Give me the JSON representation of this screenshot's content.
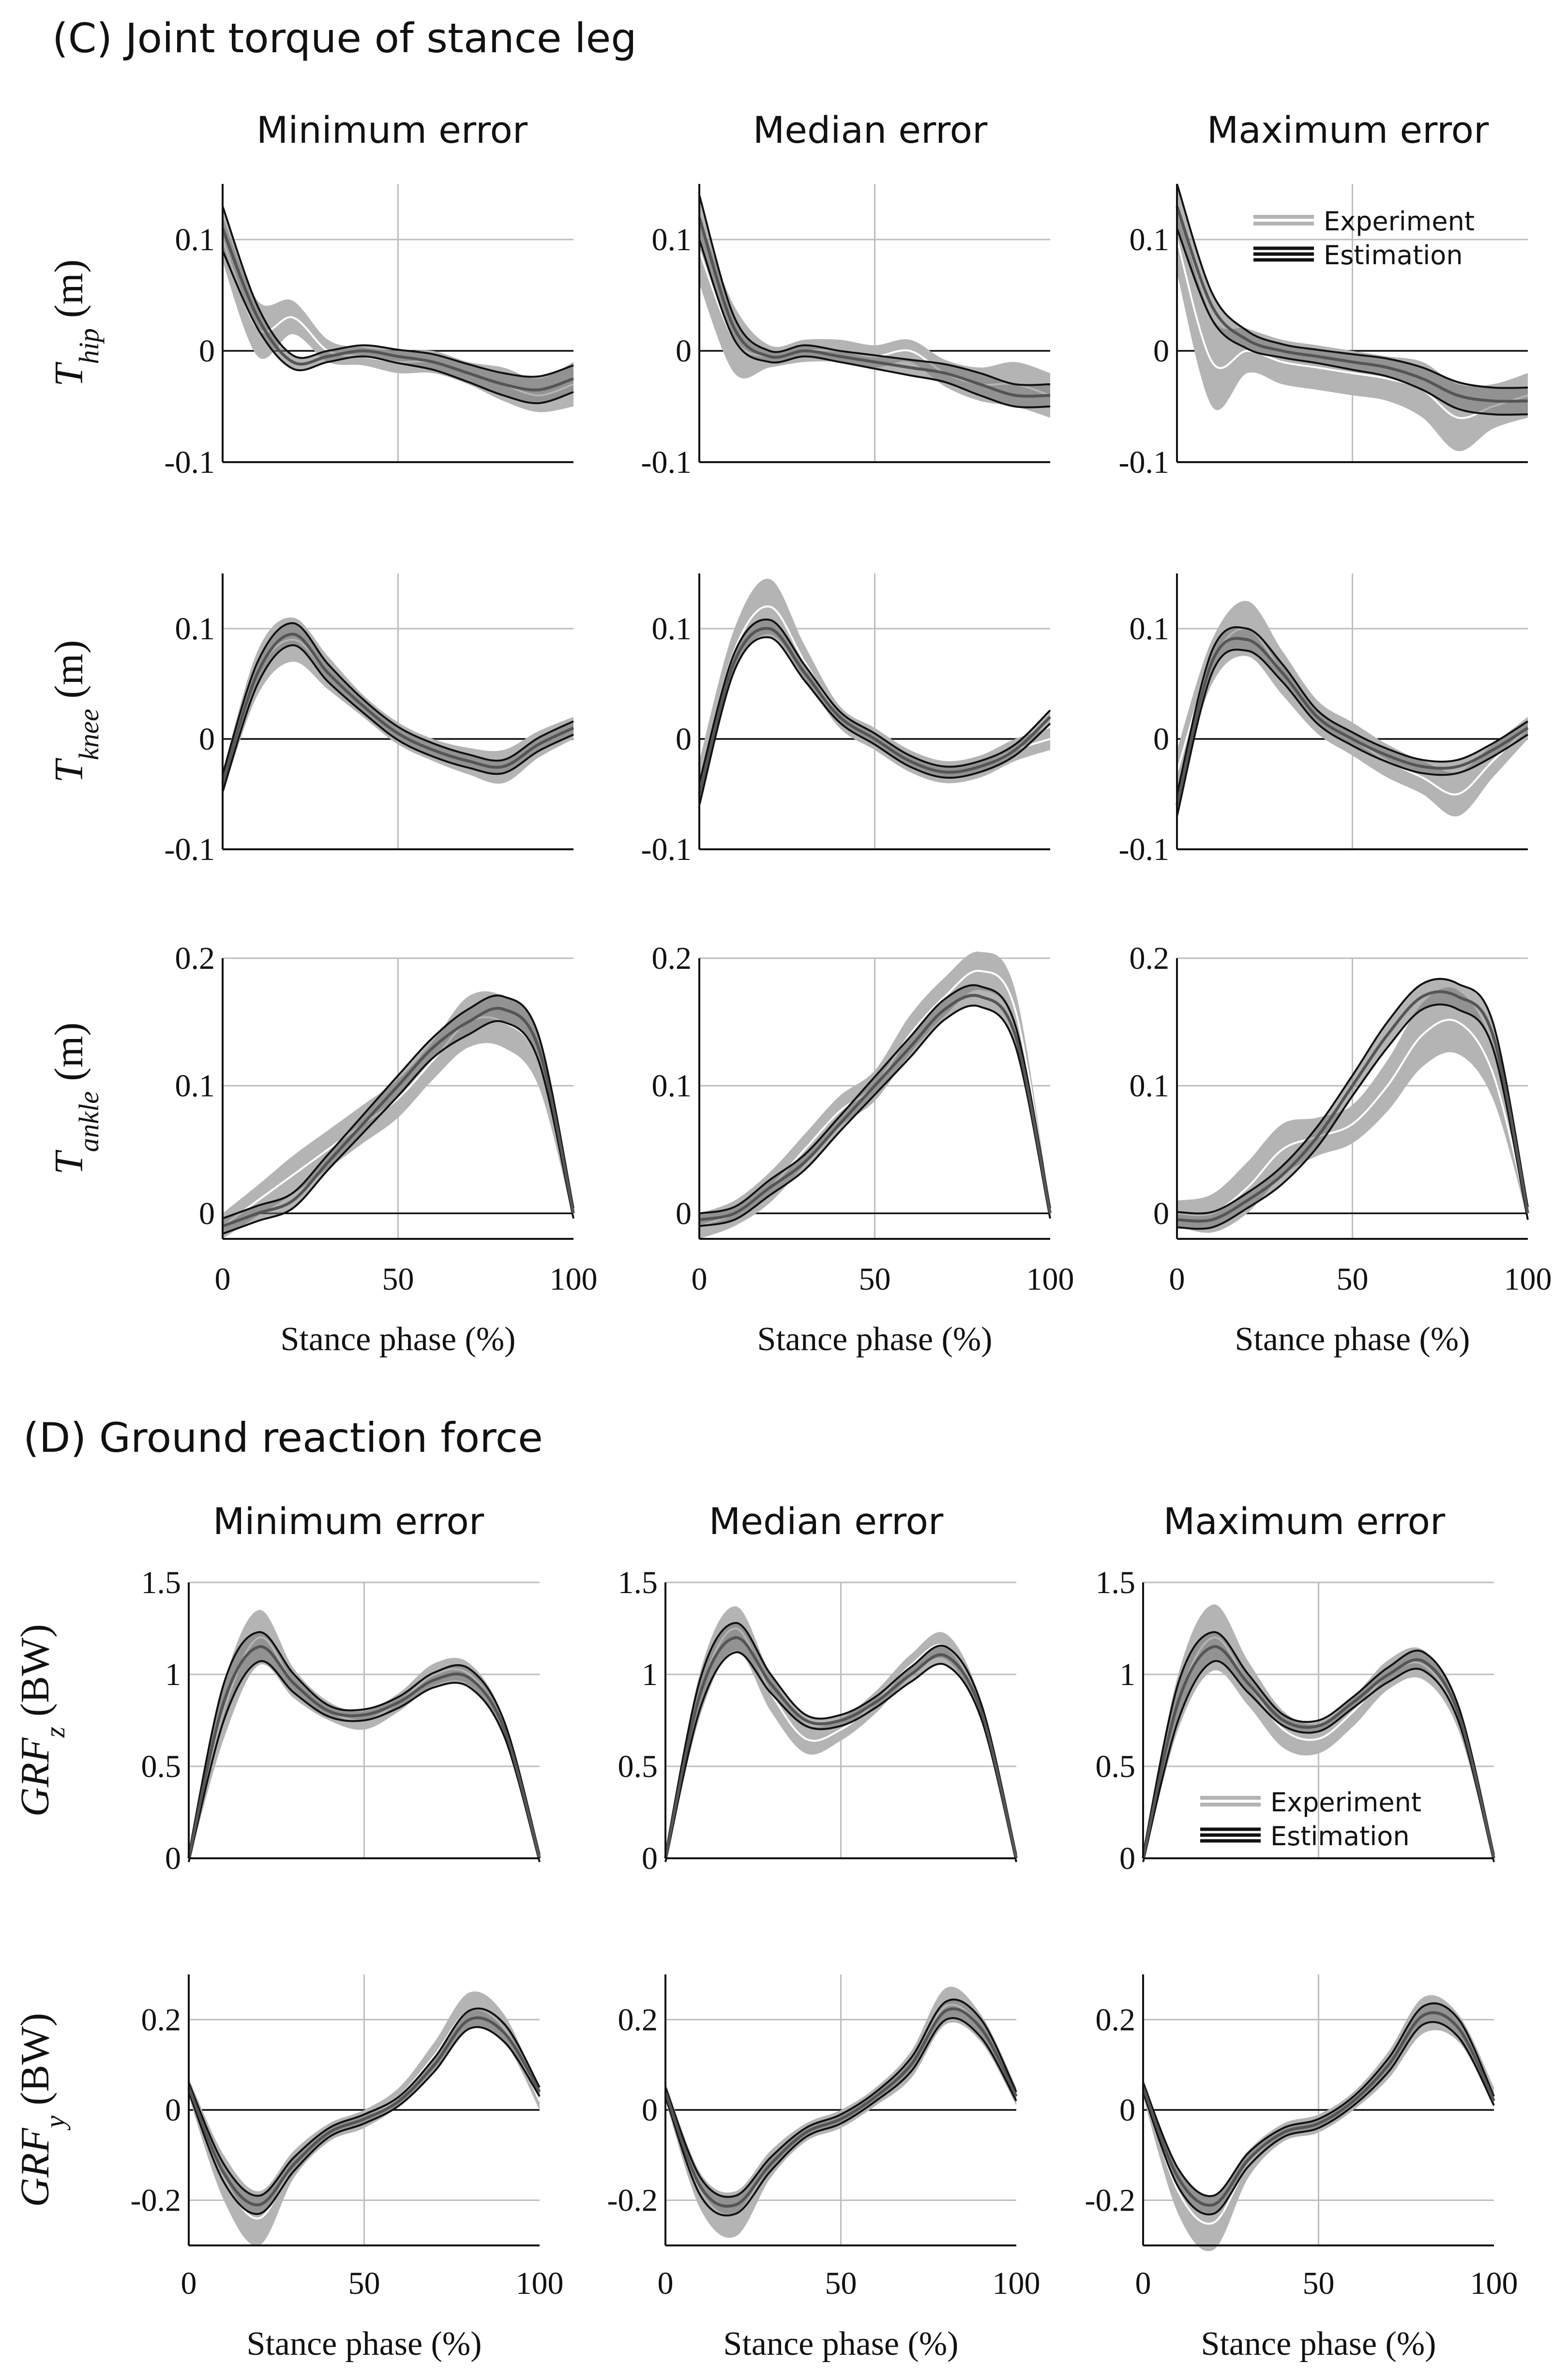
{
  "sections": {
    "C": {
      "title": "(C) Joint torque of stance leg"
    },
    "D": {
      "title": "(D) Ground reaction force"
    }
  },
  "columns": [
    "Minimum error",
    "Median error",
    "Maximum error"
  ],
  "legend": {
    "experiment": "Experiment",
    "estimation": "Estimation"
  },
  "x_axis": {
    "label": "Stance phase (%)",
    "ticks": [
      "0",
      "50",
      "100"
    ]
  },
  "colors": {
    "experiment_band": "#b4b4b4",
    "experiment_mean": "#ffffff",
    "estimation": "#111111",
    "estimation_mean": "#555555",
    "grid": "#bdbdbd",
    "zero_line": "#111111"
  },
  "rows": [
    {
      "id": "hip",
      "y_label": {
        "main": "T",
        "sub": "hip",
        "unit": " (m)"
      },
      "ylim": [
        -0.1,
        0.15
      ],
      "yticks": [
        0.1,
        0,
        -0.1
      ],
      "ytick_labels": [
        "0.1",
        "0",
        "-0.1"
      ]
    },
    {
      "id": "knee",
      "y_label": {
        "main": "T",
        "sub": "knee",
        "unit": " (m)"
      },
      "ylim": [
        -0.1,
        0.15
      ],
      "yticks": [
        0.1,
        0,
        -0.1
      ],
      "ytick_labels": [
        "0.1",
        "0",
        "-0.1"
      ]
    },
    {
      "id": "ankle",
      "y_label": {
        "main": "T",
        "sub": "ankle",
        "unit": " (m)"
      },
      "ylim": [
        -0.02,
        0.2
      ],
      "yticks": [
        0.2,
        0.1,
        0
      ],
      "ytick_labels": [
        "0.2",
        "0.1",
        "0"
      ]
    },
    {
      "id": "grfz",
      "y_label": {
        "main": "GRF",
        "sub": "z",
        "unit": " (BW)"
      },
      "ylim": [
        0,
        1.5
      ],
      "yticks": [
        1.5,
        1,
        0.5,
        0
      ],
      "ytick_labels": [
        "1.5",
        "1",
        "0.5",
        "0"
      ]
    },
    {
      "id": "grfy",
      "y_label": {
        "main": "GRF",
        "sub": "y",
        "unit": " (BW)"
      },
      "ylim": [
        -0.3,
        0.3
      ],
      "yticks": [
        0.2,
        0,
        -0.2
      ],
      "ytick_labels": [
        "0.2",
        "0",
        "-0.2"
      ]
    }
  ],
  "chart_data": {
    "type": "line",
    "x": [
      0,
      10,
      20,
      30,
      40,
      50,
      60,
      70,
      80,
      90,
      100
    ],
    "series_note": "Experiment mean with ±SD band (gray), Estimation mean with ±SD lines (black). Values in data units, estimated from the figure.",
    "panels": [
      {
        "row": "hip",
        "col": "Minimum error",
        "experiment": {
          "mean": [
            0.1,
            0.02,
            0.03,
            0.0,
            -0.005,
            -0.01,
            -0.01,
            -0.02,
            -0.03,
            -0.04,
            -0.03
          ],
          "sd": [
            0.02,
            0.025,
            0.015,
            0.01,
            0.008,
            0.01,
            0.01,
            0.01,
            0.015,
            0.015,
            0.02
          ]
        },
        "estimation": {
          "mean": [
            0.11,
            0.03,
            -0.01,
            -0.005,
            0.0,
            -0.005,
            -0.01,
            -0.02,
            -0.03,
            -0.035,
            -0.025
          ],
          "sd": [
            0.02,
            0.01,
            0.006,
            0.005,
            0.005,
            0.006,
            0.007,
            0.008,
            0.01,
            0.012,
            0.012
          ]
        }
      },
      {
        "row": "hip",
        "col": "Median error",
        "experiment": {
          "mean": [
            0.09,
            0.01,
            -0.005,
            0.0,
            0.0,
            -0.005,
            0.0,
            -0.02,
            -0.03,
            -0.03,
            -0.04
          ],
          "sd": [
            0.03,
            0.03,
            0.01,
            0.01,
            0.01,
            0.01,
            0.01,
            0.012,
            0.015,
            0.02,
            0.02
          ]
        },
        "estimation": {
          "mean": [
            0.12,
            0.02,
            -0.005,
            0.0,
            -0.005,
            -0.01,
            -0.015,
            -0.02,
            -0.03,
            -0.04,
            -0.04
          ],
          "sd": [
            0.02,
            0.01,
            0.005,
            0.005,
            0.005,
            0.006,
            0.007,
            0.008,
            0.01,
            0.01,
            0.01
          ]
        }
      },
      {
        "row": "hip",
        "col": "Maximum error",
        "experiment": {
          "mean": [
            0.1,
            -0.01,
            0.0,
            -0.01,
            -0.015,
            -0.02,
            -0.025,
            -0.035,
            -0.06,
            -0.05,
            -0.04
          ],
          "sd": [
            0.03,
            0.04,
            0.02,
            0.02,
            0.02,
            0.02,
            0.02,
            0.025,
            0.03,
            0.02,
            0.02
          ]
        },
        "estimation": {
          "mean": [
            0.13,
            0.04,
            0.01,
            0.0,
            -0.005,
            -0.01,
            -0.015,
            -0.025,
            -0.04,
            -0.045,
            -0.045
          ],
          "sd": [
            0.02,
            0.012,
            0.008,
            0.006,
            0.006,
            0.007,
            0.008,
            0.01,
            0.012,
            0.012,
            0.012
          ]
        }
      },
      {
        "row": "knee",
        "col": "Minimum error",
        "experiment": {
          "mean": [
            -0.04,
            0.06,
            0.09,
            0.06,
            0.03,
            0.005,
            -0.01,
            -0.02,
            -0.025,
            -0.005,
            0.01
          ],
          "sd": [
            0.01,
            0.02,
            0.02,
            0.015,
            0.01,
            0.01,
            0.01,
            0.012,
            0.015,
            0.012,
            0.01
          ]
        },
        "estimation": {
          "mean": [
            -0.04,
            0.06,
            0.095,
            0.06,
            0.03,
            0.005,
            -0.01,
            -0.02,
            -0.025,
            -0.005,
            0.01
          ],
          "sd": [
            0.008,
            0.01,
            0.01,
            0.008,
            0.006,
            0.006,
            0.006,
            0.006,
            0.006,
            0.006,
            0.006
          ]
        }
      },
      {
        "row": "knee",
        "col": "Median error",
        "experiment": {
          "mean": [
            -0.04,
            0.08,
            0.12,
            0.07,
            0.02,
            0.0,
            -0.02,
            -0.03,
            -0.025,
            -0.01,
            0.0
          ],
          "sd": [
            0.02,
            0.02,
            0.025,
            0.015,
            0.01,
            0.01,
            0.01,
            0.01,
            0.01,
            0.01,
            0.01
          ]
        },
        "estimation": {
          "mean": [
            -0.05,
            0.07,
            0.1,
            0.06,
            0.02,
            0.0,
            -0.02,
            -0.03,
            -0.025,
            -0.01,
            0.02
          ],
          "sd": [
            0.01,
            0.008,
            0.008,
            0.007,
            0.005,
            0.005,
            0.005,
            0.005,
            0.005,
            0.005,
            0.006
          ]
        }
      },
      {
        "row": "knee",
        "col": "Maximum error",
        "experiment": {
          "mean": [
            -0.03,
            0.07,
            0.1,
            0.06,
            0.02,
            0.0,
            -0.02,
            -0.035,
            -0.05,
            -0.02,
            0.01
          ],
          "sd": [
            0.02,
            0.02,
            0.025,
            0.02,
            0.015,
            0.015,
            0.015,
            0.015,
            0.02,
            0.015,
            0.01
          ]
        },
        "estimation": {
          "mean": [
            -0.06,
            0.07,
            0.09,
            0.06,
            0.02,
            0.0,
            -0.015,
            -0.025,
            -0.025,
            -0.01,
            0.01
          ],
          "sd": [
            0.01,
            0.01,
            0.01,
            0.008,
            0.006,
            0.006,
            0.006,
            0.006,
            0.006,
            0.006,
            0.006
          ]
        }
      },
      {
        "row": "ankle",
        "col": "Minimum error",
        "experiment": {
          "mean": [
            -0.01,
            0.01,
            0.03,
            0.05,
            0.07,
            0.09,
            0.12,
            0.15,
            0.15,
            0.12,
            0.0
          ],
          "sd": [
            0.01,
            0.012,
            0.015,
            0.015,
            0.015,
            0.015,
            0.015,
            0.02,
            0.02,
            0.02,
            0.005
          ]
        },
        "estimation": {
          "mean": [
            -0.01,
            0.0,
            0.01,
            0.04,
            0.07,
            0.1,
            0.13,
            0.15,
            0.16,
            0.13,
            0.0
          ],
          "sd": [
            0.006,
            0.006,
            0.006,
            0.006,
            0.007,
            0.008,
            0.008,
            0.01,
            0.01,
            0.01,
            0.004
          ]
        }
      },
      {
        "row": "ankle",
        "col": "Median error",
        "experiment": {
          "mean": [
            -0.01,
            0.0,
            0.02,
            0.05,
            0.08,
            0.1,
            0.14,
            0.17,
            0.19,
            0.16,
            0.0
          ],
          "sd": [
            0.01,
            0.01,
            0.012,
            0.012,
            0.012,
            0.012,
            0.015,
            0.015,
            0.015,
            0.015,
            0.005
          ]
        },
        "estimation": {
          "mean": [
            -0.005,
            0.0,
            0.02,
            0.04,
            0.07,
            0.1,
            0.13,
            0.16,
            0.17,
            0.14,
            0.0
          ],
          "sd": [
            0.005,
            0.005,
            0.006,
            0.006,
            0.006,
            0.007,
            0.008,
            0.008,
            0.008,
            0.008,
            0.004
          ]
        }
      },
      {
        "row": "ankle",
        "col": "Maximum error",
        "experiment": {
          "mean": [
            0.0,
            0.0,
            0.02,
            0.05,
            0.06,
            0.07,
            0.1,
            0.14,
            0.15,
            0.11,
            0.0
          ],
          "sd": [
            0.01,
            0.015,
            0.02,
            0.02,
            0.015,
            0.015,
            0.02,
            0.025,
            0.025,
            0.02,
            0.005
          ]
        },
        "estimation": {
          "mean": [
            -0.005,
            -0.005,
            0.01,
            0.03,
            0.06,
            0.1,
            0.14,
            0.17,
            0.17,
            0.14,
            0.0
          ],
          "sd": [
            0.006,
            0.006,
            0.006,
            0.007,
            0.008,
            0.008,
            0.01,
            0.01,
            0.01,
            0.01,
            0.005
          ]
        }
      },
      {
        "row": "grfz",
        "col": "Minimum error",
        "experiment": {
          "mean": [
            0.0,
            0.8,
            1.2,
            0.95,
            0.8,
            0.75,
            0.85,
            1.0,
            1.0,
            0.7,
            0.0
          ],
          "sd": [
            0.02,
            0.15,
            0.15,
            0.08,
            0.05,
            0.05,
            0.05,
            0.06,
            0.06,
            0.05,
            0.02
          ]
        },
        "estimation": {
          "mean": [
            0.0,
            0.85,
            1.15,
            0.95,
            0.8,
            0.78,
            0.85,
            0.97,
            0.98,
            0.7,
            0.0
          ],
          "sd": [
            0.02,
            0.1,
            0.08,
            0.05,
            0.03,
            0.03,
            0.03,
            0.04,
            0.05,
            0.04,
            0.02
          ]
        }
      },
      {
        "row": "grfz",
        "col": "Median error",
        "experiment": {
          "mean": [
            0.0,
            0.9,
            1.25,
            0.9,
            0.65,
            0.7,
            0.85,
            1.05,
            1.15,
            0.8,
            0.0
          ],
          "sd": [
            0.02,
            0.12,
            0.12,
            0.1,
            0.08,
            0.06,
            0.06,
            0.06,
            0.07,
            0.05,
            0.02
          ]
        },
        "estimation": {
          "mean": [
            0.0,
            0.9,
            1.2,
            0.95,
            0.75,
            0.75,
            0.85,
            1.0,
            1.1,
            0.8,
            0.0
          ],
          "sd": [
            0.02,
            0.08,
            0.08,
            0.05,
            0.03,
            0.03,
            0.03,
            0.04,
            0.05,
            0.04,
            0.02
          ]
        }
      },
      {
        "row": "grfz",
        "col": "Maximum error",
        "experiment": {
          "mean": [
            0.0,
            0.85,
            1.2,
            0.95,
            0.7,
            0.65,
            0.8,
            1.0,
            1.05,
            0.75,
            0.0
          ],
          "sd": [
            0.02,
            0.15,
            0.18,
            0.12,
            0.1,
            0.08,
            0.08,
            0.08,
            0.08,
            0.06,
            0.02
          ]
        },
        "estimation": {
          "mean": [
            0.0,
            0.85,
            1.15,
            0.95,
            0.75,
            0.72,
            0.85,
            1.0,
            1.07,
            0.78,
            0.0
          ],
          "sd": [
            0.02,
            0.1,
            0.08,
            0.05,
            0.03,
            0.03,
            0.03,
            0.04,
            0.05,
            0.04,
            0.02
          ]
        }
      },
      {
        "row": "grfy",
        "col": "Minimum error",
        "experiment": {
          "mean": [
            0.05,
            -0.15,
            -0.24,
            -0.12,
            -0.05,
            -0.02,
            0.03,
            0.12,
            0.22,
            0.18,
            0.02
          ],
          "sd": [
            0.02,
            0.05,
            0.06,
            0.03,
            0.02,
            0.02,
            0.02,
            0.03,
            0.04,
            0.03,
            0.02
          ]
        },
        "estimation": {
          "mean": [
            0.05,
            -0.14,
            -0.21,
            -0.12,
            -0.05,
            -0.02,
            0.02,
            0.1,
            0.2,
            0.17,
            0.04
          ],
          "sd": [
            0.01,
            0.02,
            0.02,
            0.015,
            0.01,
            0.01,
            0.01,
            0.015,
            0.02,
            0.02,
            0.01
          ]
        }
      },
      {
        "row": "grfy",
        "col": "Median error",
        "experiment": {
          "mean": [
            0.04,
            -0.18,
            -0.23,
            -0.12,
            -0.05,
            -0.02,
            0.03,
            0.1,
            0.23,
            0.18,
            0.03
          ],
          "sd": [
            0.02,
            0.04,
            0.05,
            0.03,
            0.02,
            0.02,
            0.02,
            0.03,
            0.04,
            0.03,
            0.02
          ]
        },
        "estimation": {
          "mean": [
            0.04,
            -0.17,
            -0.21,
            -0.12,
            -0.05,
            -0.02,
            0.03,
            0.1,
            0.22,
            0.18,
            0.03
          ],
          "sd": [
            0.01,
            0.02,
            0.02,
            0.015,
            0.01,
            0.01,
            0.01,
            0.015,
            0.02,
            0.02,
            0.01
          ]
        }
      },
      {
        "row": "grfy",
        "col": "Maximum error",
        "experiment": {
          "mean": [
            0.05,
            -0.18,
            -0.25,
            -0.12,
            -0.05,
            -0.03,
            0.02,
            0.1,
            0.21,
            0.18,
            0.03
          ],
          "sd": [
            0.02,
            0.05,
            0.06,
            0.03,
            0.02,
            0.02,
            0.02,
            0.03,
            0.04,
            0.03,
            0.02
          ]
        },
        "estimation": {
          "mean": [
            0.05,
            -0.15,
            -0.21,
            -0.11,
            -0.05,
            -0.03,
            0.02,
            0.1,
            0.21,
            0.18,
            0.02
          ],
          "sd": [
            0.01,
            0.02,
            0.02,
            0.015,
            0.01,
            0.01,
            0.01,
            0.015,
            0.02,
            0.02,
            0.01
          ]
        }
      }
    ]
  }
}
